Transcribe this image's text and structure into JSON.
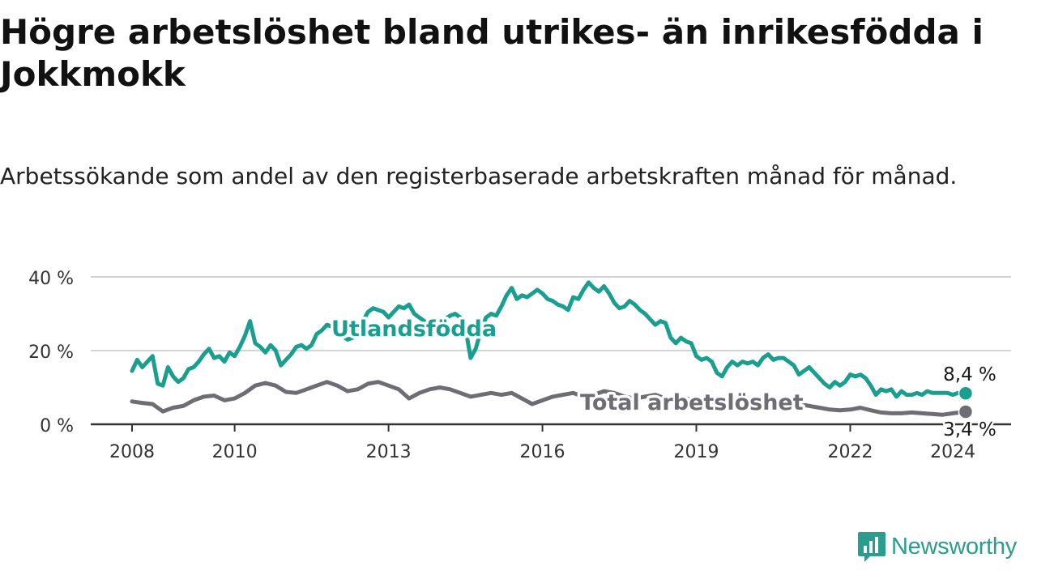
{
  "title": "Högre arbetslöshet bland utrikes- än inrikesfödda i Jokkmokk",
  "subtitle": "Arbetssökande som andel av den registerbaserade arbetskraften månad för månad.",
  "brand": {
    "name": "Newsworthy",
    "icon": "newsworthy-logo-icon",
    "color": "#2a9d8f"
  },
  "chart_data": {
    "type": "line",
    "title": "Högre arbetslöshet bland utrikes- än inrikesfödda i Jokkmokk",
    "subtitle": "Arbetssökande som andel av den registerbaserade arbetskraften månad för månad.",
    "xlabel": "",
    "ylabel": "",
    "ylim": [
      0,
      40
    ],
    "xlim": [
      2008.0,
      2024.33
    ],
    "yticks": [
      {
        "value": 0,
        "label": "0 %"
      },
      {
        "value": 20,
        "label": "20 %"
      },
      {
        "value": 40,
        "label": "40 %"
      }
    ],
    "xticks": [
      {
        "value": 2008,
        "label": "2008"
      },
      {
        "value": 2010,
        "label": "2010"
      },
      {
        "value": 2013,
        "label": "2013"
      },
      {
        "value": 2016,
        "label": "2016"
      },
      {
        "value": 2019,
        "label": "2019"
      },
      {
        "value": 2022,
        "label": "2022"
      },
      {
        "value": 2024,
        "label": "2024"
      }
    ],
    "grid": true,
    "series": [
      {
        "name": "Utlandsfödda",
        "label": "Utlandsfödda",
        "color": "#1a9e8f",
        "end_label": "8,4 %",
        "end_value": 8.4,
        "points": [
          [
            2008.0,
            14.5
          ],
          [
            2008.1,
            17.5
          ],
          [
            2008.2,
            15.5
          ],
          [
            2008.3,
            17.0
          ],
          [
            2008.4,
            18.5
          ],
          [
            2008.5,
            11.0
          ],
          [
            2008.6,
            10.5
          ],
          [
            2008.7,
            15.5
          ],
          [
            2008.8,
            13.0
          ],
          [
            2008.9,
            11.5
          ],
          [
            2009.0,
            12.5
          ],
          [
            2009.1,
            15.0
          ],
          [
            2009.2,
            15.5
          ],
          [
            2009.3,
            17.0
          ],
          [
            2009.4,
            19.0
          ],
          [
            2009.5,
            20.5
          ],
          [
            2009.6,
            18.0
          ],
          [
            2009.7,
            18.5
          ],
          [
            2009.8,
            17.0
          ],
          [
            2009.9,
            19.5
          ],
          [
            2010.0,
            18.5
          ],
          [
            2010.1,
            21.0
          ],
          [
            2010.2,
            24.0
          ],
          [
            2010.3,
            28.0
          ],
          [
            2010.4,
            22.0
          ],
          [
            2010.5,
            21.0
          ],
          [
            2010.6,
            19.5
          ],
          [
            2010.7,
            21.5
          ],
          [
            2010.8,
            20.0
          ],
          [
            2010.9,
            16.0
          ],
          [
            2011.0,
            17.5
          ],
          [
            2011.1,
            19.0
          ],
          [
            2011.2,
            21.0
          ],
          [
            2011.3,
            21.5
          ],
          [
            2011.4,
            20.5
          ],
          [
            2011.5,
            21.5
          ],
          [
            2011.6,
            24.5
          ],
          [
            2011.7,
            25.5
          ],
          [
            2011.8,
            27.0
          ],
          [
            2011.9,
            26.5
          ],
          [
            2012.0,
            25.5
          ],
          [
            2012.1,
            24.0
          ],
          [
            2012.2,
            23.0
          ],
          [
            2012.3,
            23.5
          ],
          [
            2012.4,
            24.5
          ],
          [
            2012.5,
            28.0
          ],
          [
            2012.6,
            30.5
          ],
          [
            2012.7,
            31.5
          ],
          [
            2012.8,
            31.0
          ],
          [
            2012.9,
            30.5
          ],
          [
            2013.0,
            29.0
          ],
          [
            2013.1,
            30.5
          ],
          [
            2013.2,
            32.0
          ],
          [
            2013.3,
            31.5
          ],
          [
            2013.4,
            32.5
          ],
          [
            2013.5,
            30.0
          ],
          [
            2013.6,
            29.0
          ],
          [
            2013.7,
            28.0
          ],
          [
            2013.8,
            26.5
          ],
          [
            2013.9,
            25.5
          ],
          [
            2014.0,
            26.0
          ],
          [
            2014.1,
            28.5
          ],
          [
            2014.2,
            29.5
          ],
          [
            2014.3,
            30.0
          ],
          [
            2014.4,
            29.0
          ],
          [
            2014.5,
            26.0
          ],
          [
            2014.6,
            18.0
          ],
          [
            2014.7,
            20.5
          ],
          [
            2014.8,
            25.5
          ],
          [
            2014.9,
            29.0
          ],
          [
            2015.0,
            30.0
          ],
          [
            2015.1,
            29.5
          ],
          [
            2015.2,
            32.0
          ],
          [
            2015.3,
            35.0
          ],
          [
            2015.4,
            37.0
          ],
          [
            2015.5,
            34.0
          ],
          [
            2015.6,
            35.0
          ],
          [
            2015.7,
            34.5
          ],
          [
            2015.8,
            35.5
          ],
          [
            2015.9,
            36.5
          ],
          [
            2016.0,
            35.5
          ],
          [
            2016.1,
            34.0
          ],
          [
            2016.2,
            33.5
          ],
          [
            2016.3,
            32.5
          ],
          [
            2016.4,
            32.0
          ],
          [
            2016.5,
            31.0
          ],
          [
            2016.6,
            34.5
          ],
          [
            2016.7,
            34.0
          ],
          [
            2016.8,
            36.5
          ],
          [
            2016.9,
            38.5
          ],
          [
            2017.0,
            37.0
          ],
          [
            2017.1,
            36.0
          ],
          [
            2017.2,
            37.5
          ],
          [
            2017.3,
            35.5
          ],
          [
            2017.4,
            33.0
          ],
          [
            2017.5,
            31.5
          ],
          [
            2017.6,
            32.0
          ],
          [
            2017.7,
            33.5
          ],
          [
            2017.8,
            32.5
          ],
          [
            2017.9,
            31.0
          ],
          [
            2018.0,
            30.0
          ],
          [
            2018.1,
            28.5
          ],
          [
            2018.2,
            27.0
          ],
          [
            2018.3,
            28.0
          ],
          [
            2018.4,
            27.5
          ],
          [
            2018.5,
            23.5
          ],
          [
            2018.6,
            22.0
          ],
          [
            2018.7,
            23.5
          ],
          [
            2018.8,
            22.5
          ],
          [
            2018.9,
            22.0
          ],
          [
            2019.0,
            18.5
          ],
          [
            2019.1,
            17.5
          ],
          [
            2019.2,
            18.0
          ],
          [
            2019.3,
            17.0
          ],
          [
            2019.4,
            14.0
          ],
          [
            2019.5,
            13.0
          ],
          [
            2019.6,
            15.5
          ],
          [
            2019.7,
            17.0
          ],
          [
            2019.8,
            16.0
          ],
          [
            2019.9,
            17.0
          ],
          [
            2020.0,
            16.5
          ],
          [
            2020.1,
            17.0
          ],
          [
            2020.2,
            16.0
          ],
          [
            2020.3,
            18.0
          ],
          [
            2020.4,
            19.0
          ],
          [
            2020.5,
            17.5
          ],
          [
            2020.6,
            18.0
          ],
          [
            2020.7,
            18.0
          ],
          [
            2020.8,
            17.0
          ],
          [
            2020.9,
            16.0
          ],
          [
            2021.0,
            13.5
          ],
          [
            2021.1,
            14.5
          ],
          [
            2021.2,
            15.5
          ],
          [
            2021.3,
            14.0
          ],
          [
            2021.4,
            12.5
          ],
          [
            2021.5,
            11.0
          ],
          [
            2021.6,
            10.0
          ],
          [
            2021.7,
            11.5
          ],
          [
            2021.8,
            10.5
          ],
          [
            2021.9,
            11.5
          ],
          [
            2022.0,
            13.5
          ],
          [
            2022.1,
            13.0
          ],
          [
            2022.2,
            13.5
          ],
          [
            2022.3,
            12.5
          ],
          [
            2022.4,
            10.5
          ],
          [
            2022.5,
            8.0
          ],
          [
            2022.6,
            9.5
          ],
          [
            2022.7,
            9.0
          ],
          [
            2022.8,
            9.5
          ],
          [
            2022.9,
            7.5
          ],
          [
            2023.0,
            9.0
          ],
          [
            2023.1,
            8.0
          ],
          [
            2023.2,
            8.0
          ],
          [
            2023.3,
            8.5
          ],
          [
            2023.4,
            8.0
          ],
          [
            2023.5,
            9.0
          ],
          [
            2023.6,
            8.5
          ],
          [
            2023.7,
            8.5
          ],
          [
            2023.8,
            8.5
          ],
          [
            2023.9,
            8.5
          ],
          [
            2024.0,
            8.0
          ],
          [
            2024.1,
            8.5
          ],
          [
            2024.25,
            8.4
          ]
        ]
      },
      {
        "name": "Total arbetslöshet",
        "label": "Total arbetslöshet",
        "color": "#6e6d74",
        "end_label": "3,4 %",
        "end_value": 3.4,
        "points": [
          [
            2008.0,
            6.2
          ],
          [
            2008.2,
            5.8
          ],
          [
            2008.4,
            5.5
          ],
          [
            2008.6,
            3.5
          ],
          [
            2008.8,
            4.5
          ],
          [
            2009.0,
            5.0
          ],
          [
            2009.2,
            6.5
          ],
          [
            2009.4,
            7.5
          ],
          [
            2009.6,
            7.8
          ],
          [
            2009.8,
            6.5
          ],
          [
            2010.0,
            7.0
          ],
          [
            2010.2,
            8.5
          ],
          [
            2010.4,
            10.5
          ],
          [
            2010.6,
            11.2
          ],
          [
            2010.8,
            10.5
          ],
          [
            2011.0,
            8.8
          ],
          [
            2011.2,
            8.5
          ],
          [
            2011.4,
            9.5
          ],
          [
            2011.6,
            10.5
          ],
          [
            2011.8,
            11.5
          ],
          [
            2012.0,
            10.5
          ],
          [
            2012.2,
            9.0
          ],
          [
            2012.4,
            9.5
          ],
          [
            2012.6,
            11.0
          ],
          [
            2012.8,
            11.5
          ],
          [
            2013.0,
            10.5
          ],
          [
            2013.2,
            9.5
          ],
          [
            2013.4,
            7.0
          ],
          [
            2013.6,
            8.5
          ],
          [
            2013.8,
            9.5
          ],
          [
            2014.0,
            10.0
          ],
          [
            2014.2,
            9.5
          ],
          [
            2014.4,
            8.5
          ],
          [
            2014.6,
            7.5
          ],
          [
            2014.8,
            8.0
          ],
          [
            2015.0,
            8.5
          ],
          [
            2015.2,
            8.0
          ],
          [
            2015.4,
            8.5
          ],
          [
            2015.6,
            7.0
          ],
          [
            2015.8,
            5.5
          ],
          [
            2016.0,
            6.5
          ],
          [
            2016.2,
            7.5
          ],
          [
            2016.4,
            8.0
          ],
          [
            2016.6,
            8.5
          ],
          [
            2016.8,
            7.5
          ],
          [
            2017.0,
            8.0
          ],
          [
            2017.2,
            9.0
          ],
          [
            2017.4,
            8.5
          ],
          [
            2017.6,
            7.5
          ],
          [
            2017.8,
            7.0
          ],
          [
            2018.0,
            7.5
          ],
          [
            2018.2,
            8.0
          ],
          [
            2018.4,
            7.0
          ],
          [
            2018.6,
            6.5
          ],
          [
            2018.8,
            7.0
          ],
          [
            2019.0,
            6.5
          ],
          [
            2019.2,
            6.0
          ],
          [
            2019.4,
            6.0
          ],
          [
            2019.6,
            5.5
          ],
          [
            2019.8,
            6.0
          ],
          [
            2020.0,
            6.0
          ],
          [
            2020.2,
            6.5
          ],
          [
            2020.4,
            6.0
          ],
          [
            2020.6,
            6.0
          ],
          [
            2020.8,
            5.5
          ],
          [
            2021.0,
            5.5
          ],
          [
            2021.2,
            5.0
          ],
          [
            2021.4,
            4.5
          ],
          [
            2021.6,
            4.0
          ],
          [
            2021.8,
            3.8
          ],
          [
            2022.0,
            4.0
          ],
          [
            2022.2,
            4.5
          ],
          [
            2022.4,
            3.8
          ],
          [
            2022.6,
            3.2
          ],
          [
            2022.8,
            3.0
          ],
          [
            2023.0,
            3.0
          ],
          [
            2023.2,
            3.2
          ],
          [
            2023.4,
            3.0
          ],
          [
            2023.6,
            2.8
          ],
          [
            2023.8,
            2.6
          ],
          [
            2024.0,
            3.0
          ],
          [
            2024.25,
            3.4
          ]
        ]
      }
    ]
  }
}
